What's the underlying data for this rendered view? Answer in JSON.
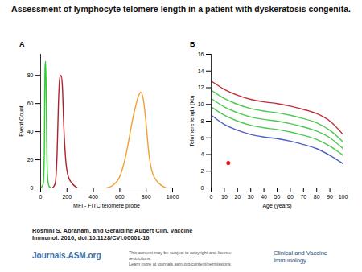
{
  "title": "Assessment of lymphocyte telomere length in a patient with dyskeratosis congenita.",
  "footer": {
    "citation": [
      "Roshini S. Abraham, and Geraldine Aubert Clin. Vaccine",
      "Immunol. 2016; doi:10.1128/CVI.00001-16"
    ],
    "site": "Journals.ASM.org",
    "notice": [
      "This content may be subject to copyright and license restrictions.",
      "Learn more at journals.asm.org/content/permissions"
    ],
    "journal": "Clinical and Vaccine Immunology"
  },
  "chart_data": [
    {
      "type": "line",
      "title": "A",
      "x_label": "MFI - FITC telomere probe",
      "y_label": "Event Count",
      "xlim": [
        0,
        1000
      ],
      "xticks": [
        0,
        200,
        400,
        600,
        800,
        1000
      ],
      "ylim": [
        0,
        95
      ],
      "yticks": [
        0,
        20,
        40,
        60,
        80
      ],
      "series": [
        {
          "color": "#2ecc2e",
          "x": [
            0,
            10,
            20,
            28,
            33,
            38,
            43,
            48,
            55,
            65,
            80
          ],
          "values": [
            0,
            1,
            3,
            25,
            85,
            90,
            60,
            20,
            5,
            1,
            0
          ]
        },
        {
          "color": "#b0202a",
          "x": [
            90,
            110,
            125,
            135,
            145,
            155,
            165,
            175,
            190,
            210,
            240,
            280
          ],
          "values": [
            0,
            3,
            25,
            60,
            78,
            80,
            72,
            45,
            20,
            8,
            3,
            0
          ]
        },
        {
          "color": "#f0a030",
          "x": [
            500,
            550,
            600,
            650,
            680,
            700,
            720,
            740,
            760,
            780,
            800,
            820,
            850,
            900,
            950
          ],
          "values": [
            0,
            2,
            8,
            25,
            40,
            50,
            58,
            65,
            68,
            62,
            45,
            25,
            10,
            3,
            0
          ]
        }
      ]
    },
    {
      "type": "line",
      "title": "B",
      "x_label": "Age (years)",
      "y_label": "Telomere length (kb)",
      "xlim": [
        0,
        100
      ],
      "xticks": [
        0,
        10,
        20,
        30,
        40,
        50,
        60,
        70,
        80,
        90,
        100
      ],
      "ylim": [
        0,
        16
      ],
      "yticks": [
        0,
        2,
        4,
        6,
        8,
        10,
        12,
        14,
        16
      ],
      "series": [
        {
          "color": "#c0303a",
          "x": [
            1,
            10,
            20,
            30,
            40,
            50,
            60,
            70,
            80,
            90,
            100
          ],
          "values": [
            12.7,
            11.8,
            11.1,
            10.6,
            10.3,
            10.1,
            9.8,
            9.4,
            8.9,
            8.0,
            6.4
          ]
        },
        {
          "color": "#4ec94e",
          "x": [
            1,
            10,
            20,
            30,
            40,
            50,
            60,
            70,
            80,
            90,
            100
          ],
          "values": [
            11.6,
            10.7,
            10.0,
            9.5,
            9.2,
            9.0,
            8.7,
            8.3,
            7.8,
            6.9,
            5.5
          ]
        },
        {
          "color": "#4ec94e",
          "x": [
            1,
            10,
            20,
            30,
            40,
            50,
            60,
            70,
            80,
            90,
            100
          ],
          "values": [
            10.6,
            9.7,
            9.0,
            8.5,
            8.2,
            8.0,
            7.7,
            7.3,
            6.8,
            6.0,
            4.7
          ]
        },
        {
          "color": "#4ec94e",
          "x": [
            1,
            10,
            20,
            30,
            40,
            50,
            60,
            70,
            80,
            90,
            100
          ],
          "values": [
            9.6,
            8.7,
            8.0,
            7.5,
            7.2,
            7.0,
            6.7,
            6.3,
            5.8,
            5.0,
            3.9
          ]
        },
        {
          "color": "#4a5fc4",
          "x": [
            1,
            10,
            20,
            30,
            40,
            50,
            60,
            70,
            80,
            90,
            100
          ],
          "values": [
            8.6,
            7.6,
            6.9,
            6.4,
            6.1,
            5.9,
            5.6,
            5.2,
            4.7,
            3.9,
            2.9
          ]
        },
        {
          "type": "scatter",
          "marker": "circle",
          "color": "#e01010",
          "x": [
            13
          ],
          "values": [
            3
          ]
        }
      ]
    }
  ]
}
